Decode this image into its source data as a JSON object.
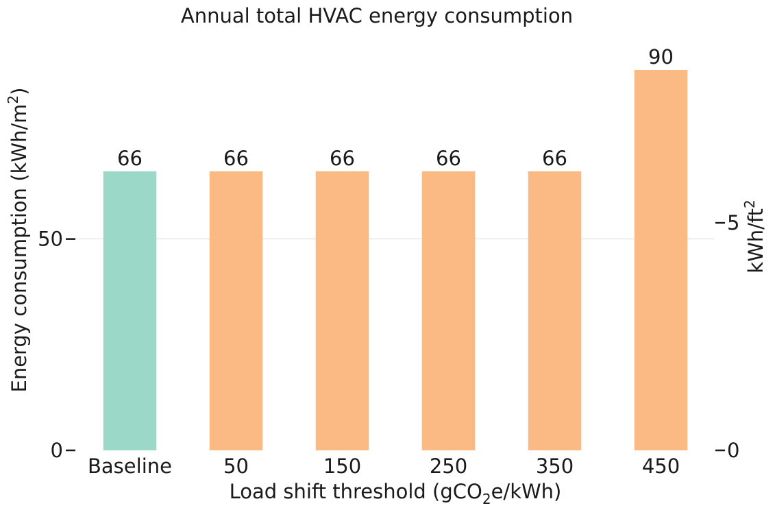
{
  "chart_data": {
    "type": "bar",
    "title": "Annual total HVAC energy consumption",
    "xlabel": {
      "pre": "Load shift threshold (gCO",
      "sub": "2",
      "post": "e/kWh)"
    },
    "ylabel": {
      "pre": "Energy consumption (kWh/m",
      "sup": "2",
      "post": ")"
    },
    "ylabel_right": {
      "pre": "kWh/ft",
      "sup": "2"
    },
    "categories": [
      "Baseline",
      "50",
      "150",
      "250",
      "350",
      "450"
    ],
    "values": [
      66,
      66,
      66,
      66,
      66,
      90
    ],
    "value_labels": [
      "66",
      "66",
      "66",
      "66",
      "66",
      "90"
    ],
    "bar_colors": [
      "#9bd8c8",
      "#fbba84",
      "#fbba84",
      "#fbba84",
      "#fbba84",
      "#fbba84"
    ],
    "ylim": [
      0,
      90
    ],
    "yticks": [
      0,
      50
    ],
    "ytick_labels": [
      "0",
      "50"
    ],
    "right_axis_factor": 0.0929,
    "yticks_right": [
      0,
      5
    ],
    "ytick_labels_right": [
      "0",
      "5"
    ],
    "grid": "horizontal at 50",
    "grid_color": "#d9d9d9"
  }
}
